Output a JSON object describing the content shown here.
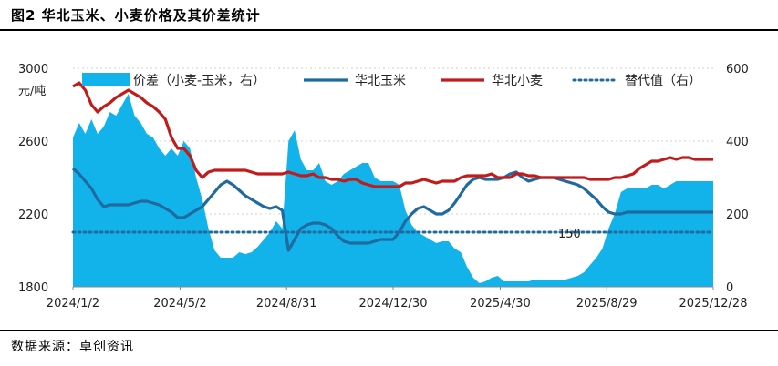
{
  "figure": {
    "title": "图2 华北玉米、小麦价格及其价差统计",
    "source": "数据来源：卓创资讯"
  },
  "chart_data": {
    "type": "line",
    "y_left": {
      "unit_label": "元/吨",
      "min": 1800,
      "max": 3000,
      "ticks": [
        1800,
        2200,
        2600,
        3000
      ]
    },
    "y_right": {
      "min": 0,
      "max": 600,
      "ticks": [
        0,
        200,
        400,
        600
      ]
    },
    "x_ticks": [
      "2024/1/2",
      "2024/5/2",
      "2024/8/31",
      "2024/12/30",
      "2025/4/30",
      "2025/8/29",
      "2025/12/28"
    ],
    "x_tick_index": [
      0,
      17.4,
      34.7,
      52,
      69.4,
      86.7,
      104
    ],
    "x_count": 105,
    "legend": [
      {
        "key": "spread",
        "name": "价差（小麦-玉米，右）",
        "style": "area",
        "color": "#12b3ea"
      },
      {
        "key": "corn",
        "name": "华北玉米",
        "style": "line",
        "color": "#1f6a9f"
      },
      {
        "key": "wheat",
        "name": "华北小麦",
        "style": "line",
        "color": "#c21b1b"
      },
      {
        "key": "substitute",
        "name": "替代值（右）",
        "style": "dotted",
        "color": "#1f6a9f"
      }
    ],
    "annotation": {
      "text": "150",
      "x_index": 80
    },
    "substitute_value": 150,
    "corn": [
      2450,
      2420,
      2380,
      2340,
      2280,
      2240,
      2250,
      2250,
      2250,
      2250,
      2260,
      2270,
      2270,
      2260,
      2250,
      2230,
      2210,
      2180,
      2180,
      2200,
      2220,
      2240,
      2280,
      2320,
      2360,
      2380,
      2360,
      2330,
      2300,
      2280,
      2260,
      2240,
      2230,
      2240,
      2220,
      2000,
      2060,
      2120,
      2140,
      2150,
      2150,
      2140,
      2120,
      2080,
      2050,
      2040,
      2040,
      2040,
      2040,
      2050,
      2060,
      2060,
      2060,
      2100,
      2160,
      2200,
      2230,
      2240,
      2220,
      2200,
      2200,
      2220,
      2260,
      2310,
      2360,
      2390,
      2400,
      2390,
      2390,
      2390,
      2400,
      2420,
      2430,
      2400,
      2380,
      2390,
      2400,
      2400,
      2400,
      2390,
      2380,
      2370,
      2360,
      2340,
      2310,
      2280,
      2240,
      2210,
      2200,
      2200,
      2210,
      2210,
      2210,
      2210,
      2210,
      2210,
      2210,
      2210,
      2210,
      2210,
      2210,
      2210,
      2210,
      2210,
      2210
    ],
    "wheat": [
      2900,
      2920,
      2880,
      2800,
      2760,
      2790,
      2810,
      2840,
      2860,
      2880,
      2860,
      2840,
      2810,
      2790,
      2760,
      2720,
      2620,
      2560,
      2560,
      2520,
      2440,
      2400,
      2430,
      2440,
      2440,
      2440,
      2440,
      2440,
      2440,
      2430,
      2420,
      2420,
      2420,
      2420,
      2420,
      2430,
      2420,
      2410,
      2410,
      2420,
      2400,
      2400,
      2390,
      2390,
      2380,
      2390,
      2390,
      2370,
      2360,
      2350,
      2350,
      2350,
      2350,
      2350,
      2370,
      2370,
      2380,
      2390,
      2380,
      2370,
      2380,
      2380,
      2380,
      2400,
      2410,
      2410,
      2410,
      2410,
      2420,
      2400,
      2400,
      2400,
      2420,
      2420,
      2410,
      2410,
      2400,
      2400,
      2400,
      2400,
      2400,
      2400,
      2400,
      2400,
      2390,
      2390,
      2390,
      2390,
      2400,
      2400,
      2410,
      2420,
      2450,
      2470,
      2490,
      2490,
      2500,
      2510,
      2500,
      2510,
      2510,
      2500,
      2500,
      2500,
      2500
    ],
    "spread": [
      410,
      450,
      420,
      460,
      420,
      440,
      480,
      470,
      500,
      530,
      470,
      450,
      420,
      410,
      380,
      360,
      380,
      360,
      400,
      380,
      300,
      240,
      160,
      100,
      80,
      80,
      80,
      95,
      90,
      95,
      110,
      130,
      150,
      180,
      160,
      400,
      430,
      350,
      320,
      320,
      340,
      290,
      280,
      290,
      310,
      320,
      330,
      340,
      340,
      300,
      290,
      290,
      290,
      280,
      210,
      170,
      150,
      140,
      130,
      120,
      125,
      125,
      105,
      95,
      55,
      25,
      10,
      15,
      25,
      30,
      15,
      15,
      15,
      15,
      15,
      20,
      20,
      20,
      20,
      20,
      20,
      25,
      30,
      40,
      60,
      80,
      105,
      160,
      200,
      260,
      270,
      270,
      270,
      270,
      280,
      280,
      270,
      280,
      290,
      290,
      290,
      290,
      290,
      290,
      290
    ]
  }
}
